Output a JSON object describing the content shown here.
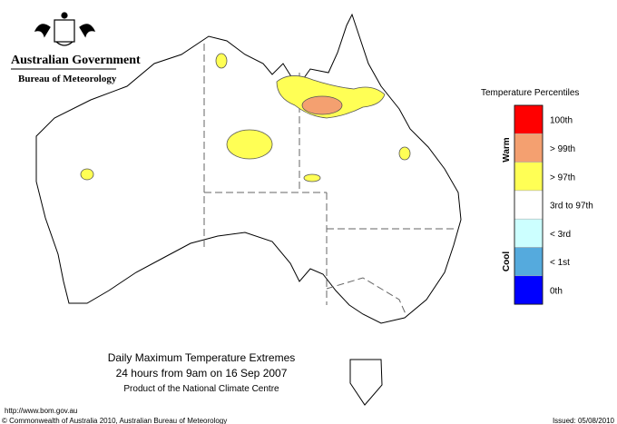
{
  "header": {
    "agency": "Australian Government",
    "bureau": "Bureau of Meteorology"
  },
  "legend": {
    "title": "Temperature Percentiles",
    "warm_label": "Warm",
    "cool_label": "Cool",
    "items": [
      {
        "label": "100th",
        "color": "#ff0000"
      },
      {
        "label": "> 99th",
        "color": "#f4a070"
      },
      {
        "label": "> 97th",
        "color": "#ffff55"
      },
      {
        "label": "3rd to 97th",
        "color": "#ffffff"
      },
      {
        "label": "< 3rd",
        "color": "#ccffff"
      },
      {
        "label": "< 1st",
        "color": "#55aadd"
      },
      {
        "label": "0th",
        "color": "#0000ff"
      }
    ]
  },
  "map_title": {
    "line1": "Daily Maximum Temperature Extremes",
    "line2": "24 hours from 9am on 16 Sep 2007",
    "line3": "Product of the National Climate Centre"
  },
  "footer": {
    "url": "http://www.bom.gov.au",
    "copyright": "© Commonwealth of Australia 2010, Australian Bureau of Meteorology",
    "issued": "Issued: 05/08/2010"
  }
}
